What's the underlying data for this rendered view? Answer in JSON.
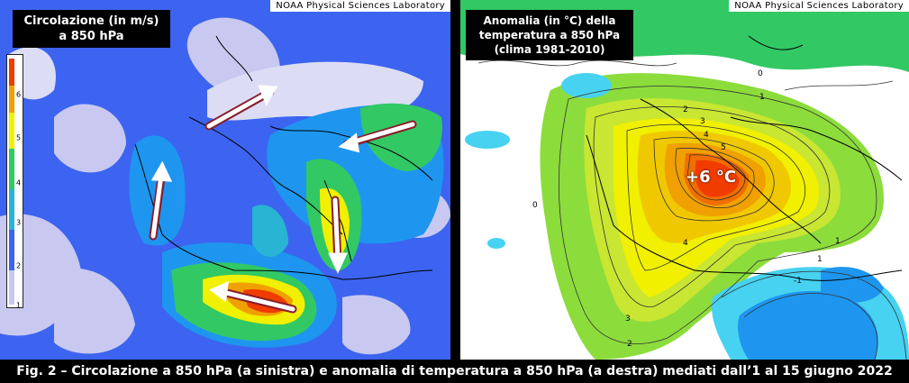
{
  "left_panel": {
    "title_line1": "Circolazione (in m/s)",
    "title_line2": "a 850 hPa",
    "credit": "NOAA Physical Sciences Laboratory",
    "colorbar_labels": [
      "1",
      "2",
      "3",
      "4",
      "5",
      "6"
    ],
    "colors": {
      "very_low": "#c8c8f0",
      "low": "#3c64f0",
      "low_mid": "#1e96f0",
      "mid": "#28b4d2",
      "green": "#32c864",
      "yellow": "#f0f000",
      "orange": "#f0a000",
      "red": "#f03c00"
    }
  },
  "right_panel": {
    "title_line1": "Anomalia (in °C) della",
    "title_line2": "temperatura a 850 hPa",
    "title_line3": "(clima 1981-2010)",
    "credit": "NOAA Physical Sciences Laboratory",
    "anomaly_label": "+6 °C",
    "contour_labels": [
      "1",
      "2",
      "3",
      "4",
      "5",
      "1",
      "4",
      "1",
      "-1",
      "0",
      "0",
      "3",
      "2"
    ],
    "colors": {
      "green": "#32c864",
      "light_green": "#8cdc3c",
      "yellow": "#f0f000",
      "orange": "#f0a000",
      "red": "#f03c00",
      "cyan": "#46d2f0",
      "blue": "#1e96f0"
    }
  },
  "caption": "Fig. 2 – Circolazione a 850 hPa (a sinistra) e anomalia di temperatura a 850 hPa (a destra) mediati dall’1 al 15 giugno 2022"
}
